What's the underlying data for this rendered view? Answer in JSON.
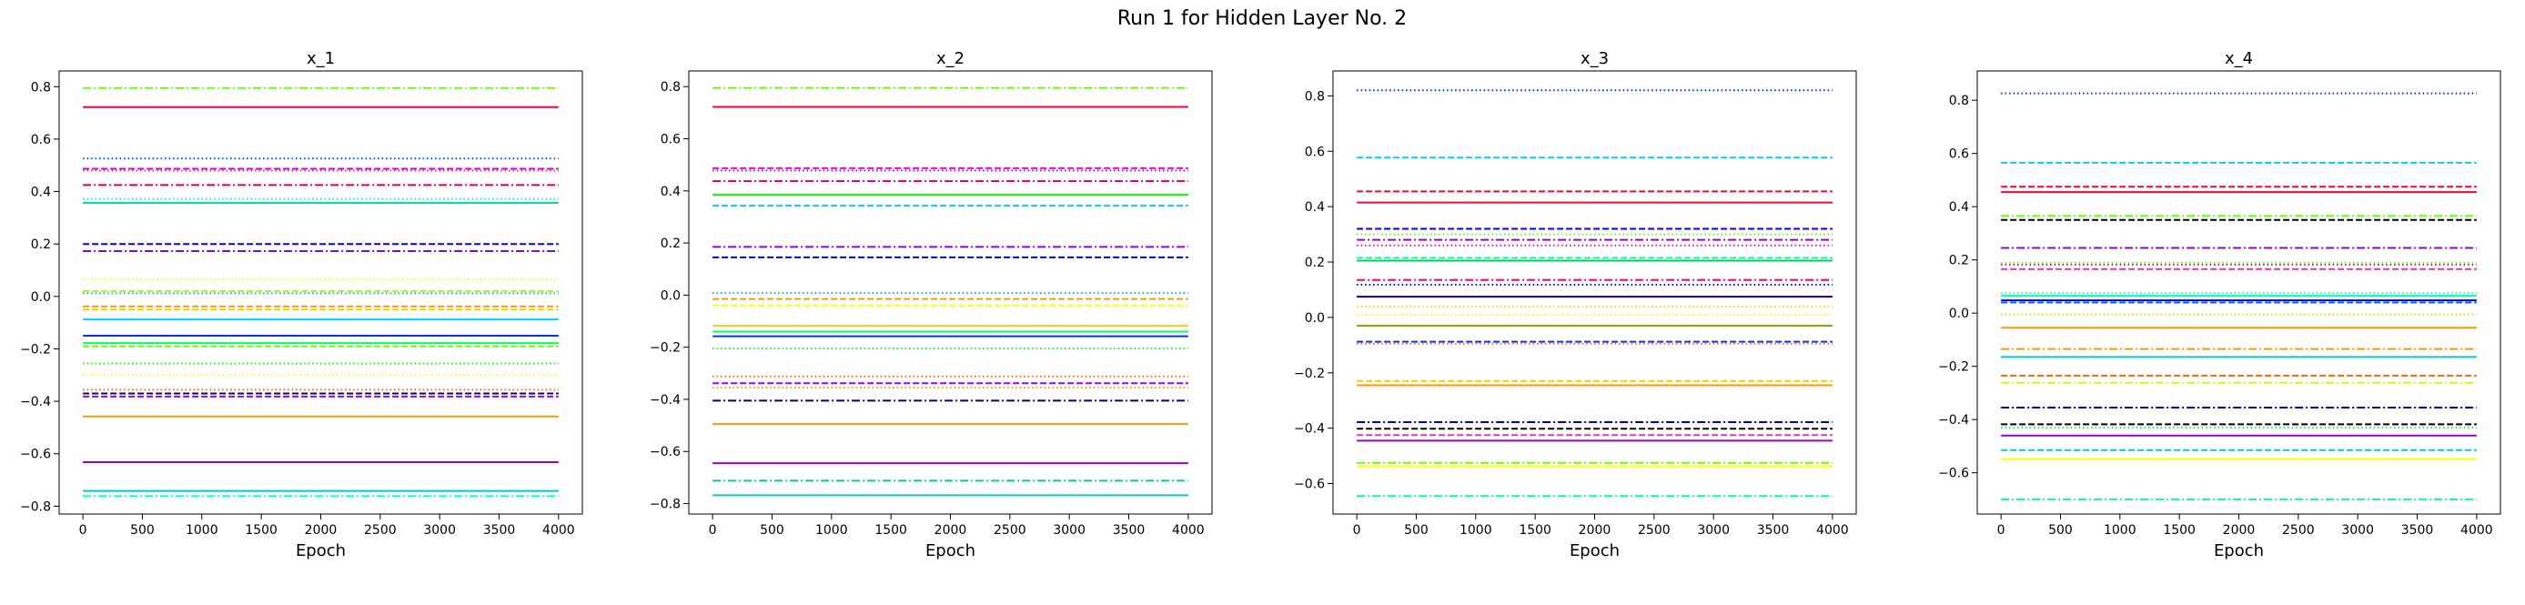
{
  "figure": {
    "title": "Run 1 for Hidden Layer No. 2"
  },
  "chart_data": [
    {
      "type": "line",
      "title": "x_1",
      "xlabel": "Epoch",
      "ylabel": "",
      "xlim": [
        -200,
        4200
      ],
      "ylim": [
        -0.83,
        0.86
      ],
      "xticks": [
        0,
        500,
        1000,
        1500,
        2000,
        2500,
        3000,
        3500,
        4000
      ],
      "yticks": [
        -0.8,
        -0.6,
        -0.4,
        -0.2,
        0.0,
        0.2,
        0.4,
        0.6,
        0.8
      ],
      "x_range": [
        0,
        4000
      ],
      "grid": false,
      "series": [
        {
          "color": "#66ff00",
          "dash": "dashdot",
          "values": [
            0.795,
            0.795
          ]
        },
        {
          "color": "#ff0033",
          "dash": "solid",
          "values": [
            0.722,
            0.722
          ]
        },
        {
          "color": "#0044ff",
          "dash": "dotted",
          "values": [
            0.526,
            0.526
          ]
        },
        {
          "color": "#cc00ff",
          "dash": "dashed",
          "values": [
            0.487,
            0.487
          ]
        },
        {
          "color": "#ff3300",
          "dash": "dotted",
          "values": [
            0.48,
            0.48
          ]
        },
        {
          "color": "#cc0066",
          "dash": "dashdot",
          "values": [
            0.425,
            0.425
          ]
        },
        {
          "color": "#00ff99",
          "dash": "dotted",
          "values": [
            0.372,
            0.372
          ]
        },
        {
          "color": "#00ddaa",
          "dash": "solid",
          "values": [
            0.357,
            0.357
          ]
        },
        {
          "color": "#0000ff",
          "dash": "dashed",
          "values": [
            0.2,
            0.2
          ]
        },
        {
          "color": "#9900cc",
          "dash": "dashdot",
          "values": [
            0.173,
            0.173
          ]
        },
        {
          "color": "#ffff00",
          "dash": "dotted",
          "values": [
            0.064,
            0.064
          ]
        },
        {
          "color": "#aaff00",
          "dash": "dashed",
          "values": [
            0.02,
            0.02
          ]
        },
        {
          "color": "#00aaff",
          "dash": "dotted",
          "values": [
            0.012,
            0.012
          ]
        },
        {
          "color": "#ff9900",
          "dash": "dashed",
          "values": [
            -0.038,
            -0.038
          ]
        },
        {
          "color": "#ffcc00",
          "dash": "dashed",
          "values": [
            -0.05,
            -0.05
          ]
        },
        {
          "color": "#00ccff",
          "dash": "solid",
          "values": [
            -0.088,
            -0.088
          ]
        },
        {
          "color": "#0033ff",
          "dash": "solid",
          "values": [
            -0.15,
            -0.15
          ]
        },
        {
          "color": "#00ff66",
          "dash": "solid",
          "values": [
            -0.178,
            -0.178
          ]
        },
        {
          "color": "#66ff00",
          "dash": "dashed",
          "values": [
            -0.19,
            -0.19
          ]
        },
        {
          "color": "#00ff00",
          "dash": "dotted",
          "values": [
            -0.256,
            -0.256
          ]
        },
        {
          "color": "#ffff00",
          "dash": "dotted",
          "values": [
            -0.3,
            -0.3
          ]
        },
        {
          "color": "#ff6600",
          "dash": "dotted",
          "values": [
            -0.356,
            -0.356
          ]
        },
        {
          "color": "#000088",
          "dash": "dashed",
          "values": [
            -0.37,
            -0.37
          ]
        },
        {
          "color": "#9900ff",
          "dash": "dashed",
          "values": [
            -0.382,
            -0.382
          ]
        },
        {
          "color": "#ff9900",
          "dash": "solid",
          "values": [
            -0.458,
            -0.458
          ]
        },
        {
          "color": "#9900cc",
          "dash": "solid",
          "values": [
            -0.632,
            -0.632
          ]
        },
        {
          "color": "#00cccc",
          "dash": "solid",
          "values": [
            -0.742,
            -0.742
          ]
        },
        {
          "color": "#00ffcc",
          "dash": "dashdot",
          "values": [
            -0.762,
            -0.762
          ]
        }
      ]
    },
    {
      "type": "line",
      "title": "x_2",
      "xlabel": "Epoch",
      "ylabel": "",
      "xlim": [
        -200,
        4200
      ],
      "ylim": [
        -0.84,
        0.86
      ],
      "xticks": [
        0,
        500,
        1000,
        1500,
        2000,
        2500,
        3000,
        3500,
        4000
      ],
      "yticks": [
        -0.8,
        -0.6,
        -0.4,
        -0.2,
        0.0,
        0.2,
        0.4,
        0.6,
        0.8
      ],
      "x_range": [
        0,
        4000
      ],
      "grid": false,
      "series": [
        {
          "color": "#66ff00",
          "dash": "dashdot",
          "values": [
            0.795,
            0.795
          ]
        },
        {
          "color": "#ff0033",
          "dash": "solid",
          "values": [
            0.722,
            0.722
          ]
        },
        {
          "color": "#ff00cc",
          "dash": "dashed",
          "values": [
            0.487,
            0.487
          ]
        },
        {
          "color": "#9900ff",
          "dash": "dotted",
          "values": [
            0.478,
            0.478
          ]
        },
        {
          "color": "#cc0066",
          "dash": "dashdot",
          "values": [
            0.437,
            0.437
          ]
        },
        {
          "color": "#00ff00",
          "dash": "solid",
          "values": [
            0.385,
            0.385
          ]
        },
        {
          "color": "#00ccff",
          "dash": "dashed",
          "values": [
            0.343,
            0.343
          ]
        },
        {
          "color": "#9900cc",
          "dash": "dashdot",
          "values": [
            0.185,
            0.185
          ]
        },
        {
          "color": "#0000cc",
          "dash": "dashed",
          "values": [
            0.145,
            0.145
          ]
        },
        {
          "color": "#00aaff",
          "dash": "dotted",
          "values": [
            0.008,
            0.008
          ]
        },
        {
          "color": "#ff9900",
          "dash": "dashed",
          "values": [
            -0.015,
            -0.015
          ]
        },
        {
          "color": "#ffff00",
          "dash": "dashed",
          "values": [
            -0.04,
            -0.04
          ]
        },
        {
          "color": "#ffcc00",
          "dash": "solid",
          "values": [
            -0.118,
            -0.118
          ]
        },
        {
          "color": "#00ff66",
          "dash": "solid",
          "values": [
            -0.14,
            -0.14
          ]
        },
        {
          "color": "#0033ff",
          "dash": "solid",
          "values": [
            -0.158,
            -0.158
          ]
        },
        {
          "color": "#00ff00",
          "dash": "dotted",
          "values": [
            -0.205,
            -0.205
          ]
        },
        {
          "color": "#ff6600",
          "dash": "dotted",
          "values": [
            -0.312,
            -0.312
          ]
        },
        {
          "color": "#9900ff",
          "dash": "dashed",
          "values": [
            -0.338,
            -0.338
          ]
        },
        {
          "color": "#ff9900",
          "dash": "dotted",
          "values": [
            -0.355,
            -0.355
          ]
        },
        {
          "color": "#000088",
          "dash": "dashdot",
          "values": [
            -0.405,
            -0.405
          ]
        },
        {
          "color": "#ff9900",
          "dash": "solid",
          "values": [
            -0.495,
            -0.495
          ]
        },
        {
          "color": "#9900cc",
          "dash": "solid",
          "values": [
            -0.645,
            -0.645
          ]
        },
        {
          "color": "#00cc99",
          "dash": "dashdot",
          "values": [
            -0.712,
            -0.712
          ]
        },
        {
          "color": "#00cccc",
          "dash": "solid",
          "values": [
            -0.768,
            -0.768
          ]
        }
      ]
    },
    {
      "type": "line",
      "title": "x_3",
      "xlabel": "Epoch",
      "ylabel": "",
      "xlim": [
        -200,
        4200
      ],
      "ylim": [
        -0.71,
        0.89
      ],
      "xticks": [
        0,
        500,
        1000,
        1500,
        2000,
        2500,
        3000,
        3500,
        4000
      ],
      "yticks": [
        -0.6,
        -0.4,
        -0.2,
        0.0,
        0.2,
        0.4,
        0.6,
        0.8
      ],
      "x_range": [
        0,
        4000
      ],
      "grid": false,
      "series": [
        {
          "color": "#0033cc",
          "dash": "dotted",
          "values": [
            0.82,
            0.82
          ]
        },
        {
          "color": "#00ccff",
          "dash": "dashed",
          "values": [
            0.577,
            0.577
          ]
        },
        {
          "color": "#ff0033",
          "dash": "dashed",
          "values": [
            0.455,
            0.455
          ]
        },
        {
          "color": "#ff0033",
          "dash": "solid",
          "values": [
            0.415,
            0.415
          ]
        },
        {
          "color": "#0000ff",
          "dash": "dashed",
          "values": [
            0.32,
            0.32
          ]
        },
        {
          "color": "#66ff00",
          "dash": "dotted",
          "values": [
            0.3,
            0.3
          ]
        },
        {
          "color": "#9900cc",
          "dash": "dashdot",
          "values": [
            0.28,
            0.28
          ]
        },
        {
          "color": "#ff00aa",
          "dash": "dotted",
          "values": [
            0.26,
            0.26
          ]
        },
        {
          "color": "#00ff99",
          "dash": "dashed",
          "values": [
            0.215,
            0.215
          ]
        },
        {
          "color": "#00cc66",
          "dash": "solid",
          "values": [
            0.205,
            0.205
          ]
        },
        {
          "color": "#ff0066",
          "dash": "dashdot",
          "values": [
            0.135,
            0.135
          ]
        },
        {
          "color": "#0000ff",
          "dash": "dotted",
          "values": [
            0.118,
            0.118
          ]
        },
        {
          "color": "#0000aa",
          "dash": "solid",
          "values": [
            0.075,
            0.075
          ]
        },
        {
          "color": "#ffcc00",
          "dash": "dotted",
          "values": [
            0.04,
            0.04
          ]
        },
        {
          "color": "#ffff00",
          "dash": "dotted",
          "values": [
            0.01,
            0.01
          ]
        },
        {
          "color": "#88aa00",
          "dash": "solid",
          "values": [
            -0.03,
            -0.03
          ]
        },
        {
          "color": "#0033ff",
          "dash": "dashed",
          "values": [
            -0.088,
            -0.088
          ]
        },
        {
          "color": "#ff6600",
          "dash": "dotted",
          "values": [
            -0.095,
            -0.095
          ]
        },
        {
          "color": "#ffcc00",
          "dash": "dashed",
          "values": [
            -0.23,
            -0.23
          ]
        },
        {
          "color": "#ff9900",
          "dash": "solid",
          "values": [
            -0.245,
            -0.245
          ]
        },
        {
          "color": "#0000cc",
          "dash": "dashdot",
          "values": [
            -0.378,
            -0.378
          ]
        },
        {
          "color": "#000000",
          "dash": "dashed",
          "values": [
            -0.402,
            -0.402
          ]
        },
        {
          "color": "#ff3399",
          "dash": "dashed",
          "values": [
            -0.425,
            -0.425
          ]
        },
        {
          "color": "#9900cc",
          "dash": "solid",
          "values": [
            -0.445,
            -0.445
          ]
        },
        {
          "color": "#66ff00",
          "dash": "dashdot",
          "values": [
            -0.525,
            -0.525
          ]
        },
        {
          "color": "#ffff00",
          "dash": "solid",
          "values": [
            -0.538,
            -0.538
          ]
        },
        {
          "color": "#00ff99",
          "dash": "dashdot",
          "values": [
            -0.645,
            -0.645
          ]
        }
      ]
    },
    {
      "type": "line",
      "title": "x_4",
      "xlabel": "Epoch",
      "ylabel": "",
      "xlim": [
        -200,
        4200
      ],
      "ylim": [
        -0.755,
        0.91
      ],
      "xticks": [
        0,
        500,
        1000,
        1500,
        2000,
        2500,
        3000,
        3500,
        4000
      ],
      "yticks": [
        -0.6,
        -0.4,
        -0.2,
        0.0,
        0.2,
        0.4,
        0.6,
        0.8
      ],
      "x_range": [
        0,
        4000
      ],
      "grid": false,
      "series": [
        {
          "color": "#0033cc",
          "dash": "dotted",
          "values": [
            0.826,
            0.826
          ]
        },
        {
          "color": "#00ccff",
          "dash": "dashed",
          "values": [
            0.565,
            0.565
          ]
        },
        {
          "color": "#ff0033",
          "dash": "dashed",
          "values": [
            0.475,
            0.475
          ]
        },
        {
          "color": "#ff0033",
          "dash": "solid",
          "values": [
            0.455,
            0.455
          ]
        },
        {
          "color": "#66ff00",
          "dash": "dashdot",
          "values": [
            0.365,
            0.365
          ]
        },
        {
          "color": "#000000",
          "dash": "dashed",
          "values": [
            0.35,
            0.35
          ]
        },
        {
          "color": "#9900cc",
          "dash": "dashdot",
          "values": [
            0.245,
            0.245
          ]
        },
        {
          "color": "#66ff00",
          "dash": "dotted",
          "values": [
            0.19,
            0.19
          ]
        },
        {
          "color": "#cc0099",
          "dash": "dotted",
          "values": [
            0.182,
            0.182
          ]
        },
        {
          "color": "#ff3399",
          "dash": "dashed",
          "values": [
            0.165,
            0.165
          ]
        },
        {
          "color": "#00ff99",
          "dash": "dotted",
          "values": [
            0.075,
            0.075
          ]
        },
        {
          "color": "#00ffcc",
          "dash": "solid",
          "values": [
            0.065,
            0.065
          ]
        },
        {
          "color": "#0000ff",
          "dash": "solid",
          "values": [
            0.048,
            0.048
          ]
        },
        {
          "color": "#0066ff",
          "dash": "dashed",
          "values": [
            0.04,
            0.04
          ]
        },
        {
          "color": "#ffcc00",
          "dash": "dotted",
          "values": [
            -0.005,
            -0.005
          ]
        },
        {
          "color": "#ff9900",
          "dash": "solid",
          "values": [
            -0.055,
            -0.055
          ]
        },
        {
          "color": "#ff9900",
          "dash": "dashdot",
          "values": [
            -0.135,
            -0.135
          ]
        },
        {
          "color": "#00cccc",
          "dash": "solid",
          "values": [
            -0.165,
            -0.165
          ]
        },
        {
          "color": "#ff6600",
          "dash": "dashed",
          "values": [
            -0.235,
            -0.235
          ]
        },
        {
          "color": "#ccff00",
          "dash": "dashdot",
          "values": [
            -0.262,
            -0.262
          ]
        },
        {
          "color": "#0000cc",
          "dash": "dashdot",
          "values": [
            -0.355,
            -0.355
          ]
        },
        {
          "color": "#000000",
          "dash": "dashed",
          "values": [
            -0.418,
            -0.418
          ]
        },
        {
          "color": "#00ff66",
          "dash": "dotted",
          "values": [
            -0.43,
            -0.43
          ]
        },
        {
          "color": "#9900cc",
          "dash": "solid",
          "values": [
            -0.46,
            -0.46
          ]
        },
        {
          "color": "#00cccc",
          "dash": "dashed",
          "values": [
            -0.515,
            -0.515
          ]
        },
        {
          "color": "#ffff00",
          "dash": "solid",
          "values": [
            -0.548,
            -0.548
          ]
        },
        {
          "color": "#00ff99",
          "dash": "dashdot",
          "values": [
            -0.7,
            -0.7
          ]
        }
      ]
    }
  ]
}
